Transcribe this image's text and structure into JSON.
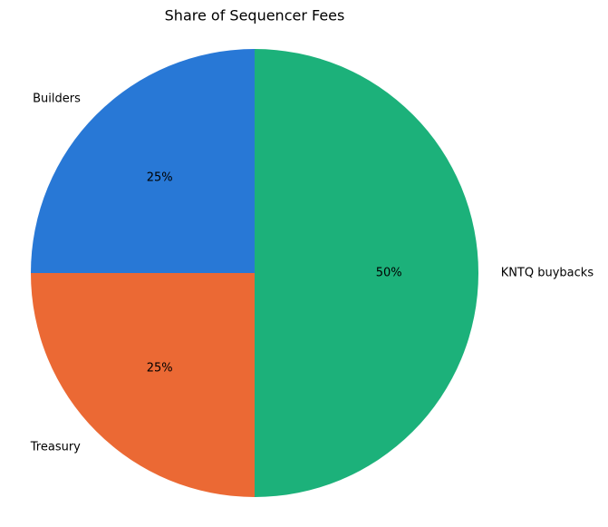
{
  "chart_data": {
    "type": "pie",
    "title": "Share of Sequencer Fees",
    "categories": [
      "Builders",
      "Treasury",
      "KNTQ buybacks"
    ],
    "values": [
      25,
      25,
      50
    ],
    "value_labels": [
      "25%",
      "25%",
      "50%"
    ],
    "colors": [
      "#2878d6",
      "#eb6934",
      "#1cb17a"
    ]
  }
}
